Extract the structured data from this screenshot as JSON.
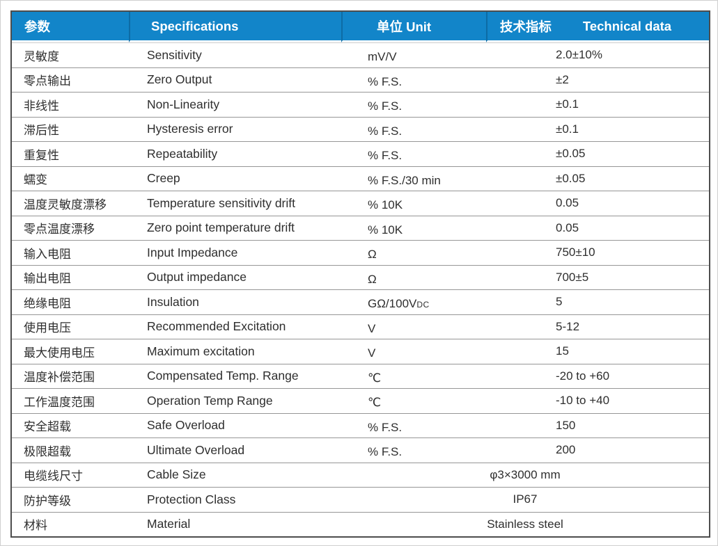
{
  "table": {
    "headers": {
      "param_cn": "参数",
      "spec": "Specifications",
      "unit": "单位 Unit",
      "tech_cn": "技术指标",
      "tech_en": "Technical data"
    },
    "rows": [
      {
        "cn": "灵敏度",
        "en": "Sensitivity",
        "unit": "mV/V",
        "value": "2.0±10%"
      },
      {
        "cn": "零点输出",
        "en": "Zero Output",
        "unit": "% F.S.",
        "value": "±2"
      },
      {
        "cn": "非线性",
        "en": "Non-Linearity",
        "unit": "% F.S.",
        "value": "±0.1"
      },
      {
        "cn": "滞后性",
        "en": "Hysteresis error",
        "unit": "% F.S.",
        "value": "±0.1"
      },
      {
        "cn": "重复性",
        "en": "Repeatability",
        "unit": "% F.S.",
        "value": "±0.05"
      },
      {
        "cn": "蠕变",
        "en": "Creep",
        "unit": "% F.S./30 min",
        "value": "±0.05"
      },
      {
        "cn": "温度灵敏度漂移",
        "en": "Temperature sensitivity drift",
        "unit": "% 10K",
        "value": "0.05"
      },
      {
        "cn": "零点温度漂移",
        "en": "Zero point temperature drift",
        "unit": "% 10K",
        "value": "0.05"
      },
      {
        "cn": "输入电阻",
        "en": "Input Impedance",
        "unit": "Ω",
        "value": "750±10"
      },
      {
        "cn": "输出电阻",
        "en": "Output impedance",
        "unit": "Ω",
        "value": "700±5"
      },
      {
        "cn": "绝缘电阻",
        "en": "Insulation",
        "unit": "GΩ/100V",
        "unit_sub": "DC",
        "value": "5"
      },
      {
        "cn": "使用电压",
        "en": "Recommended Excitation",
        "unit": "V",
        "value": "5-12"
      },
      {
        "cn": "最大使用电压",
        "en": "Maximum excitation",
        "unit": "V",
        "value": "15"
      },
      {
        "cn": "温度补偿范围",
        "en": "Compensated Temp. Range",
        "unit": "℃",
        "value": "-20 to +60"
      },
      {
        "cn": "工作温度范围",
        "en": "Operation Temp Range",
        "unit": "℃",
        "value": "-10 to +40"
      },
      {
        "cn": "安全超载",
        "en": "Safe Overload",
        "unit": "% F.S.",
        "value": "150"
      },
      {
        "cn": "极限超载",
        "en": "Ultimate Overload",
        "unit": "% F.S.",
        "value": "200"
      },
      {
        "cn": "电缆线尺寸",
        "en": "Cable Size",
        "merged": true,
        "value": "φ3×3000 mm"
      },
      {
        "cn": "防护等级",
        "en": "Protection Class",
        "merged": true,
        "value": "IP67"
      },
      {
        "cn": "材料",
        "en": "Material",
        "merged": true,
        "value": "Stainless steel"
      }
    ],
    "colors": {
      "header_bg": "#1285c9",
      "header_separator": "#0d6ca5",
      "header_text": "#ffffff"
    }
  }
}
